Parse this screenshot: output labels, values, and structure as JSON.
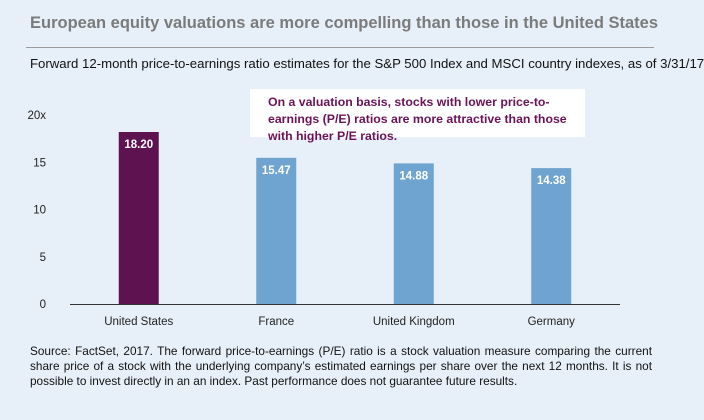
{
  "header": {
    "title": "European equity valuations are more compelling than those in the United States",
    "subtitle": "Forward 12-month price-to-earnings ratio estimates for the S&P 500 Index and MSCI country indexes, as of 3/31/17"
  },
  "callout": {
    "text": "On a valuation basis, stocks with lower price-to-earnings (P/E) ratios are more attractive than those with higher P/E ratios."
  },
  "chart_data": {
    "type": "bar",
    "title": "Forward 12-month price-to-earnings ratio estimates for the S&P 500 Index and MSCI country indexes, as of 3/31/17",
    "xlabel": "",
    "ylabel": "",
    "ylim": [
      0,
      20
    ],
    "yticks": [
      0,
      5,
      10,
      15,
      20
    ],
    "ytick_labels": [
      "0",
      "5",
      "10",
      "15",
      "20x"
    ],
    "categories": [
      "United States",
      "France",
      "United Kingdom",
      "Germany"
    ],
    "values": [
      18.2,
      15.47,
      14.88,
      14.38
    ],
    "value_labels": [
      "18.20",
      "15.47",
      "14.88",
      "14.38"
    ],
    "bar_colors": [
      "#5e1250",
      "#6fa3d0",
      "#6fa3d0",
      "#6fa3d0"
    ],
    "grid": false,
    "legend": "none"
  },
  "footer": {
    "source": "Source: FactSet, 2017. The forward price-to-earnings (P/E) ratio is a stock valuation measure comparing the current share price of a stock with the underlying company’s estimated earnings per share over the next 12 months. It is not possible to invest directly in an an index. Past performance does not guarantee future results."
  }
}
